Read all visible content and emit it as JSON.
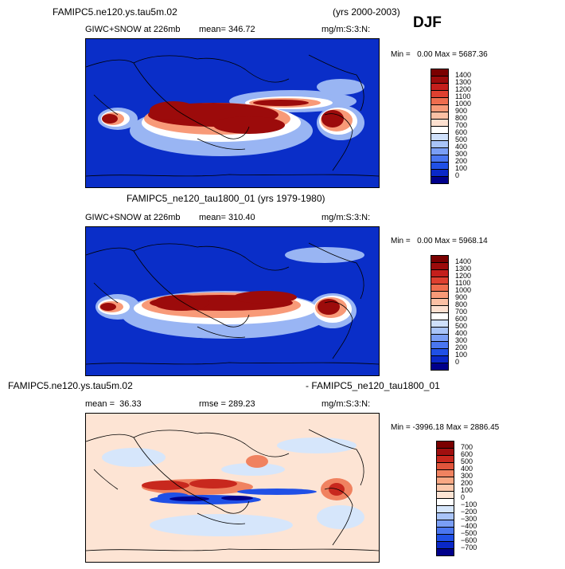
{
  "header": {
    "case_title": "FAMIPC5.ne120.ys.tau5m.02",
    "years": "(yrs 2000-2003)",
    "season": "DJF"
  },
  "panels": [
    {
      "title": "",
      "left_label": "GIWC+SNOW at 226mb",
      "mean_label": "mean= 346.72",
      "units": "mg/m:S:3:N:",
      "minmax": "Min =   0.00 Max = 5687.36",
      "palette": "seq"
    },
    {
      "title": "FAMIPC5_ne120_tau1800_01 (yrs 1979-1980)",
      "left_label": "GIWC+SNOW at 226mb",
      "mean_label": "mean= 310.40",
      "units": "mg/m:S:3:N:",
      "minmax": "Min =   0.00 Max = 5968.14",
      "palette": "seq"
    },
    {
      "title_left": "FAMIPC5.ne120.ys.tau5m.02",
      "title_right": "- FAMIPC5_ne120_tau1800_01",
      "left_label": "mean =  36.33",
      "rmse_label": "rmse = 289.23",
      "units": "mg/m:S:3:N:",
      "minmax": "Min = -3996.18 Max = 2886.45",
      "palette": "div"
    }
  ],
  "chart_data": [
    {
      "type": "heatmap",
      "title": "FAMIPC5.ne120.ys.tau5m.02 (yrs 2000-2003) DJF",
      "variable": "GIWC+SNOW at 226mb",
      "units": "mg/m:S:3:N:",
      "mean": 346.72,
      "min": 0.0,
      "max": 5687.36,
      "colorbar_levels": [
        0,
        100,
        200,
        300,
        400,
        500,
        600,
        700,
        800,
        900,
        1000,
        1100,
        1200,
        1300,
        1400
      ],
      "colorbar_colors": [
        "#00008b",
        "#0a28c8",
        "#2050e6",
        "#4a76f0",
        "#7a9ef5",
        "#a9c4f8",
        "#cfe0fb",
        "#ffffff",
        "#fde0d0",
        "#fbc0a4",
        "#f89a78",
        "#ef6d4e",
        "#de4030",
        "#c41f1c",
        "#9c0b0b",
        "#7a0000"
      ]
    },
    {
      "type": "heatmap",
      "title": "FAMIPC5_ne120_tau1800_01 (yrs 1979-1980)",
      "variable": "GIWC+SNOW at 226mb",
      "units": "mg/m:S:3:N:",
      "mean": 310.4,
      "min": 0.0,
      "max": 5968.14,
      "colorbar_levels": [
        0,
        100,
        200,
        300,
        400,
        500,
        600,
        700,
        800,
        900,
        1000,
        1100,
        1200,
        1300,
        1400
      ],
      "colorbar_colors": [
        "#00008b",
        "#0a28c8",
        "#2050e6",
        "#4a76f0",
        "#7a9ef5",
        "#a9c4f8",
        "#cfe0fb",
        "#ffffff",
        "#fde0d0",
        "#fbc0a4",
        "#f89a78",
        "#ef6d4e",
        "#de4030",
        "#c41f1c",
        "#9c0b0b",
        "#7a0000"
      ]
    },
    {
      "type": "heatmap",
      "title": "FAMIPC5.ne120.ys.tau5m.02 - FAMIPC5_ne120_tau1800_01",
      "units": "mg/m:S:3:N:",
      "mean": 36.33,
      "rmse": 289.23,
      "min": -3996.18,
      "max": 2886.45,
      "colorbar_levels": [
        -700,
        -600,
        -500,
        -400,
        -300,
        -200,
        -100,
        0,
        100,
        200,
        300,
        400,
        500,
        600,
        700
      ],
      "colorbar_labels": [
        "−700",
        "−600",
        "−500",
        "−400",
        "−300",
        "−200",
        "−100",
        "0",
        "100",
        "200",
        "300",
        "400",
        "500",
        "600",
        "700"
      ],
      "colorbar_colors": [
        "#00008b",
        "#0a28c8",
        "#2050e6",
        "#4a76f0",
        "#7a9ef5",
        "#a9c4f8",
        "#d6e6fb",
        "#ffffff",
        "#fde4d4",
        "#fbc8ac",
        "#f8a884",
        "#f08260",
        "#e0553c",
        "#c8281e",
        "#a00f0f",
        "#7a0000"
      ]
    }
  ]
}
